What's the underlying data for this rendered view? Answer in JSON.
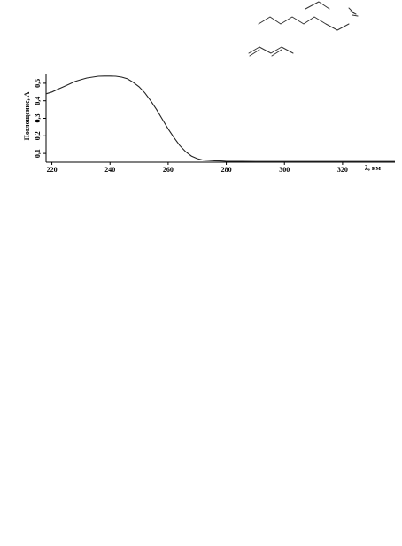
{
  "chart_data": {
    "type": "line",
    "title": "",
    "xlabel": "λ, нм",
    "ylabel": "Поглощение, А",
    "xlim": [
      218,
      338
    ],
    "ylim": [
      0.05,
      0.55
    ],
    "x_ticks": [
      220,
      240,
      260,
      280,
      300,
      320
    ],
    "x_tick_labels": [
      "220",
      "240",
      "260",
      "280",
      "300",
      "320"
    ],
    "y_ticks": [
      0.1,
      0.2,
      0.3,
      0.4,
      0.5
    ],
    "y_tick_labels": [
      "0,1",
      "0,2",
      "0,3",
      "0,4",
      "0,5"
    ],
    "grid": false,
    "series": [
      {
        "x": [
          218,
          220,
          222,
          224,
          226,
          228,
          230,
          232,
          234,
          236,
          238,
          240,
          242,
          244,
          246,
          248,
          250,
          252,
          254,
          256,
          258,
          260,
          262,
          264,
          266,
          268,
          270,
          272,
          274,
          276,
          278,
          280,
          285,
          290,
          295,
          300,
          310,
          320,
          330,
          338
        ],
        "y": [
          0.44,
          0.45,
          0.465,
          0.48,
          0.495,
          0.51,
          0.52,
          0.53,
          0.535,
          0.54,
          0.541,
          0.541,
          0.54,
          0.535,
          0.525,
          0.505,
          0.48,
          0.445,
          0.4,
          0.35,
          0.295,
          0.24,
          0.19,
          0.145,
          0.11,
          0.085,
          0.07,
          0.062,
          0.06,
          0.058,
          0.057,
          0.055,
          0.055,
          0.054,
          0.054,
          0.054,
          0.054,
          0.054,
          0.054,
          0.054
        ]
      }
    ],
    "line_color": "#222222"
  }
}
